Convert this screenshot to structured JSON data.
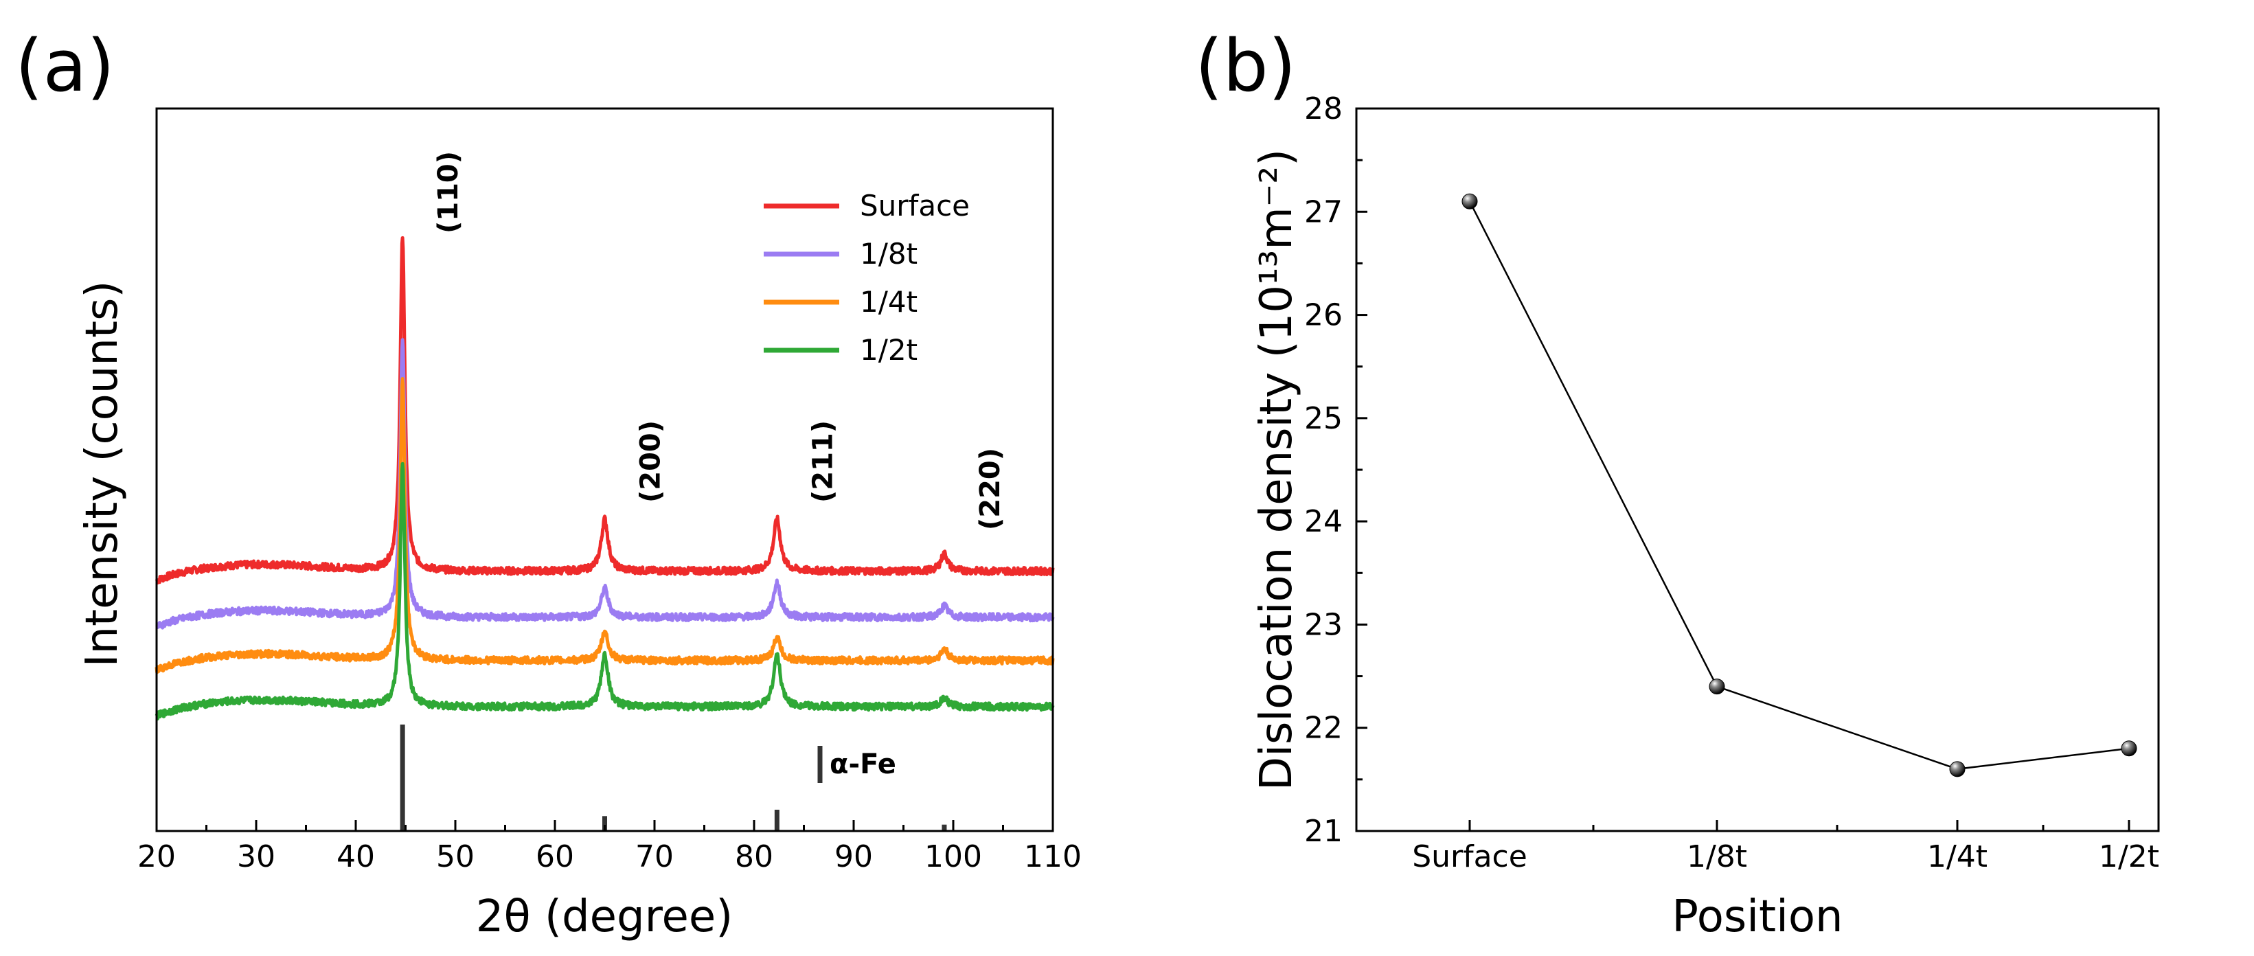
{
  "chart_data": [
    {
      "panel": "(a)",
      "type": "line",
      "title": "",
      "xlabel": "2θ (degree)",
      "ylabel": "Intensity (counts)",
      "xlim": [
        20,
        110
      ],
      "xticks": [
        20,
        30,
        40,
        50,
        60,
        70,
        80,
        90,
        100,
        110
      ],
      "yticks_shown": false,
      "series": [
        {
          "name": "Surface",
          "color": "#ee2b2b",
          "baseline": 0.26,
          "peaks": [
            [
              44.7,
              0.58
            ],
            [
              65.0,
              0.09
            ],
            [
              82.3,
              0.09
            ],
            [
              99.1,
              0.03
            ]
          ]
        },
        {
          "name": "1/8t",
          "color": "#9b7cf2",
          "baseline": 0.18,
          "peaks": [
            [
              44.7,
              0.48
            ],
            [
              65.0,
              0.05
            ],
            [
              82.3,
              0.06
            ],
            [
              99.1,
              0.02
            ]
          ]
        },
        {
          "name": "1/4t",
          "color": "#ff8c10",
          "baseline": 0.105,
          "peaks": [
            [
              44.7,
              0.49
            ],
            [
              65.0,
              0.05
            ],
            [
              82.3,
              0.04
            ],
            [
              99.1,
              0.02
            ]
          ]
        },
        {
          "name": "1/2t",
          "color": "#2fa836",
          "baseline": 0.025,
          "peaks": [
            [
              44.7,
              0.42
            ],
            [
              65.0,
              0.09
            ],
            [
              82.3,
              0.09
            ],
            [
              99.1,
              0.015
            ]
          ]
        }
      ],
      "peak_labels": [
        {
          "text": "(110)",
          "x": 44.7
        },
        {
          "text": "(200)",
          "x": 65.0
        },
        {
          "text": "(211)",
          "x": 82.3
        },
        {
          "text": "(220)",
          "x": 99.1
        }
      ],
      "reference": {
        "name": "α-Fe",
        "lines": [
          [
            44.7,
            1.0
          ],
          [
            65.0,
            0.14
          ],
          [
            82.3,
            0.2
          ],
          [
            99.1,
            0.06
          ]
        ]
      },
      "legend": "top-right"
    },
    {
      "panel": "(b)",
      "type": "line",
      "title": "",
      "xlabel": "Position",
      "ylabel": "Dislocation density (10¹³m⁻²)",
      "categories": [
        "Surface",
        "1/8t",
        "1/4t",
        "1/2t"
      ],
      "values": [
        27.1,
        22.4,
        21.6,
        21.8
      ],
      "ylim": [
        21,
        28
      ],
      "yticks": [
        21,
        22,
        23,
        24,
        25,
        26,
        27,
        28
      ]
    }
  ]
}
